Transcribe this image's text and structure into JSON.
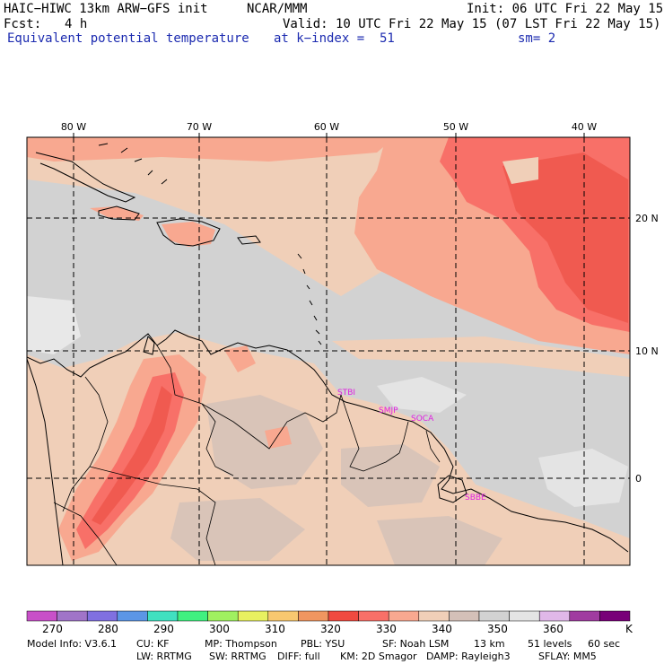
{
  "header": {
    "title_left": "HAIC−HIWC 13km ARW−GFS init",
    "title_center": "NCAR/MMM",
    "init_text": "Init: 06 UTC Fri 22 May 15",
    "fcst_label": "Fcst:",
    "fcst_value": "4 h",
    "valid_text": "Valid: 10 UTC Fri 22 May 15 (07 LST Fri 22 May 15)",
    "field_name": "Equivalent potential temperature",
    "level_text": "at k−index =  51",
    "smoothing_text": "sm= 2"
  },
  "map": {
    "lon_labels": [
      "80 W",
      "70 W",
      "60 W",
      "50 W",
      "40 W"
    ],
    "lat_labels": [
      "20 N",
      "10 N",
      "0"
    ],
    "stations": [
      "STBI",
      "SMJP",
      "SOCA",
      "SBBE"
    ],
    "station_color": "#e020e0"
  },
  "colorbar": {
    "colors": [
      "#c850c8",
      "#a074c8",
      "#8070e0",
      "#5c96e6",
      "#40e0c0",
      "#40f080",
      "#a0f060",
      "#e8f060",
      "#f8c870",
      "#f09660",
      "#f04a40",
      "#f87068",
      "#f8a890",
      "#f0cfb8",
      "#d4c0b8",
      "#d2d2d2",
      "#e4e4e4",
      "#e0b8e8",
      "#a03ca0",
      "#780078"
    ],
    "labels": [
      "270",
      "280",
      "290",
      "300",
      "310",
      "320",
      "330",
      "340",
      "350",
      "360"
    ],
    "unit": "K"
  },
  "model_info": {
    "line1": [
      "Model Info: V3.6.1",
      "CU: KF",
      "MP: Thompson",
      "PBL: YSU",
      "SF: Noah LSM",
      "13 km",
      "51 levels",
      "60 sec"
    ],
    "line2": [
      "LW: RRTMG",
      "SW: RRTMG",
      "DIFF: full",
      "KM: 2D Smagor",
      "DAMP: Rayleigh3",
      "SFLAY: MM5"
    ]
  }
}
